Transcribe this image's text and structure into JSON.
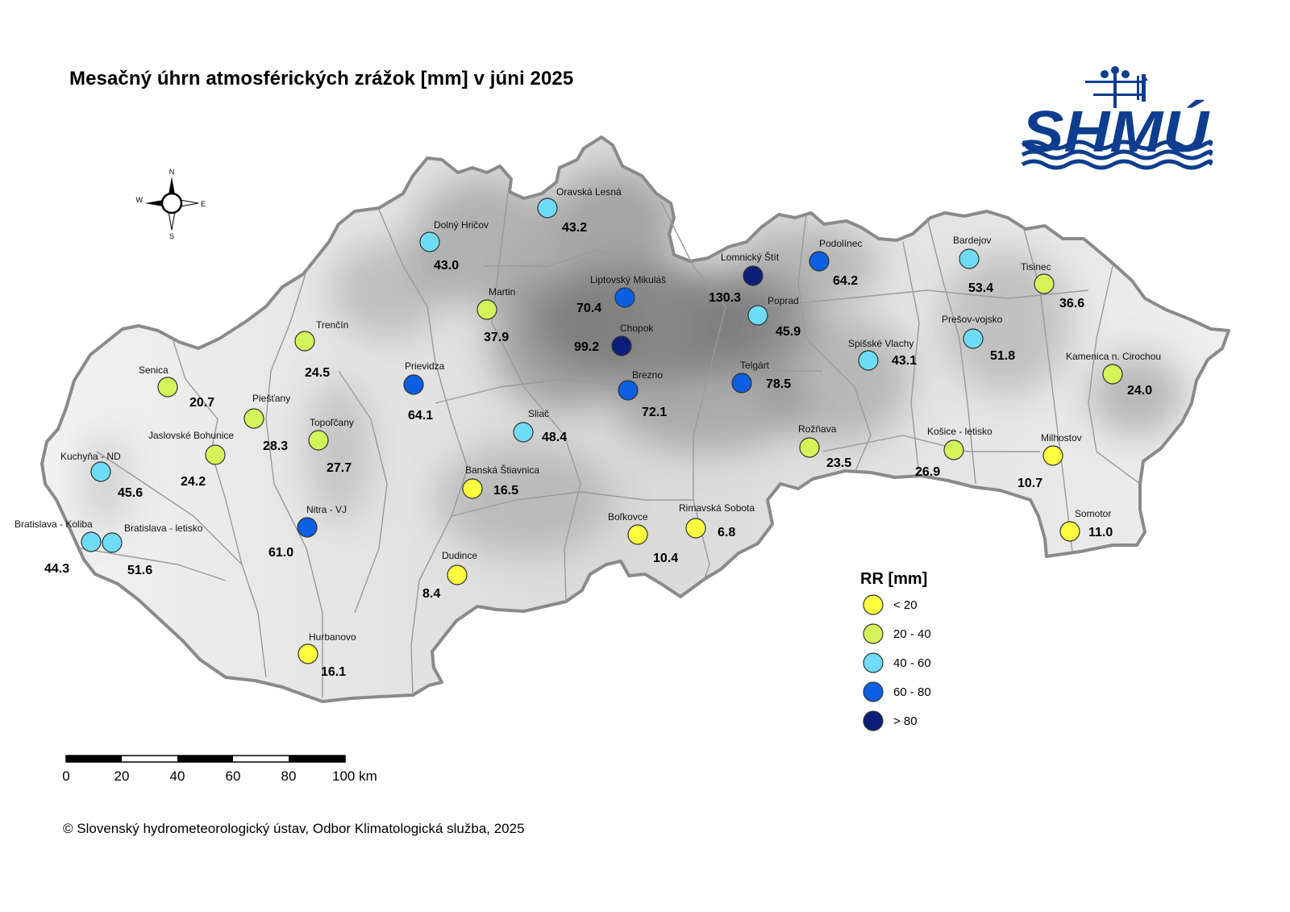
{
  "title": "Mesačný úhrn atmosférických zrážok [mm] v júni 2025",
  "logo_text": "SHMÚ",
  "copyright": "© Slovenský hydrometeorologický ústav, Odbor Klimatologická služba, 2025",
  "compass": {
    "n": "N",
    "s": "S",
    "e": "E",
    "w": "W"
  },
  "scale_bar": {
    "ticks": [
      "0",
      "20",
      "40",
      "60",
      "80",
      "100 km"
    ]
  },
  "legend": {
    "title": "RR [mm]",
    "classes": [
      {
        "label": "< 20",
        "color": "#ffff40"
      },
      {
        "label": "20 - 40",
        "color": "#d4f55a"
      },
      {
        "label": "40 - 60",
        "color": "#6fdcf6"
      },
      {
        "label": "60 - 80",
        "color": "#0b5fe0"
      },
      {
        "label": "> 80",
        "color": "#0b1f7a"
      }
    ]
  },
  "stations": [
    {
      "name": "Oravská Lesná",
      "value": "43.2",
      "class": 2
    },
    {
      "name": "Dolný Hričov",
      "value": "43.0",
      "class": 2
    },
    {
      "name": "Martin",
      "value": "37.9",
      "class": 1
    },
    {
      "name": "Liptovský Mikuláš",
      "value": "70.4",
      "class": 3
    },
    {
      "name": "Lomnický Štít",
      "value": "130.3",
      "class": 4
    },
    {
      "name": "Podolínec",
      "value": "64.2",
      "class": 3
    },
    {
      "name": "Bardejov",
      "value": "53.4",
      "class": 2
    },
    {
      "name": "Tisinec",
      "value": "36.6",
      "class": 1
    },
    {
      "name": "Poprad",
      "value": "45.9",
      "class": 2
    },
    {
      "name": "Chopok",
      "value": "99.2",
      "class": 4
    },
    {
      "name": "Trenčín",
      "value": "24.5",
      "class": 1
    },
    {
      "name": "Prešov-vojsko",
      "value": "51.8",
      "class": 2
    },
    {
      "name": "Spišské Vlachy",
      "value": "43.1",
      "class": 2
    },
    {
      "name": "Kamenica n. Cirochou",
      "value": "24.0",
      "class": 1
    },
    {
      "name": "Senica",
      "value": "20.7",
      "class": 1
    },
    {
      "name": "Prievidza",
      "value": "64.1",
      "class": 3
    },
    {
      "name": "Telgárt",
      "value": "78.5",
      "class": 3
    },
    {
      "name": "Brezno",
      "value": "72.1",
      "class": 3
    },
    {
      "name": "Piešťany",
      "value": "28.3",
      "class": 1
    },
    {
      "name": "Sliač",
      "value": "48.4",
      "class": 2
    },
    {
      "name": "Topoľčany",
      "value": "27.7",
      "class": 1
    },
    {
      "name": "Jaslovské Bohunice",
      "value": "24.2",
      "class": 1
    },
    {
      "name": "Rožňava",
      "value": "23.5",
      "class": 1
    },
    {
      "name": "Košice - letisko",
      "value": "26.9",
      "class": 1
    },
    {
      "name": "Milhostov",
      "value": "10.7",
      "class": 0
    },
    {
      "name": "Kuchyňa - ND",
      "value": "45.6",
      "class": 2
    },
    {
      "name": "Banská Štiavnica",
      "value": "16.5",
      "class": 0
    },
    {
      "name": "Nitra - VJ",
      "value": "61.0",
      "class": 3
    },
    {
      "name": "Bratislava - Koliba",
      "value": "44.3",
      "class": 2
    },
    {
      "name": "Bratislava - letisko",
      "value": "51.6",
      "class": 2
    },
    {
      "name": "Boľkovce",
      "value": "10.4",
      "class": 0
    },
    {
      "name": "Rimavská Sobota",
      "value": "6.8",
      "class": 0
    },
    {
      "name": "Somotor",
      "value": "11.0",
      "class": 0
    },
    {
      "name": "Dudince",
      "value": "8.4",
      "class": 0
    },
    {
      "name": "Hurbanovo",
      "value": "16.1",
      "class": 0
    }
  ]
}
